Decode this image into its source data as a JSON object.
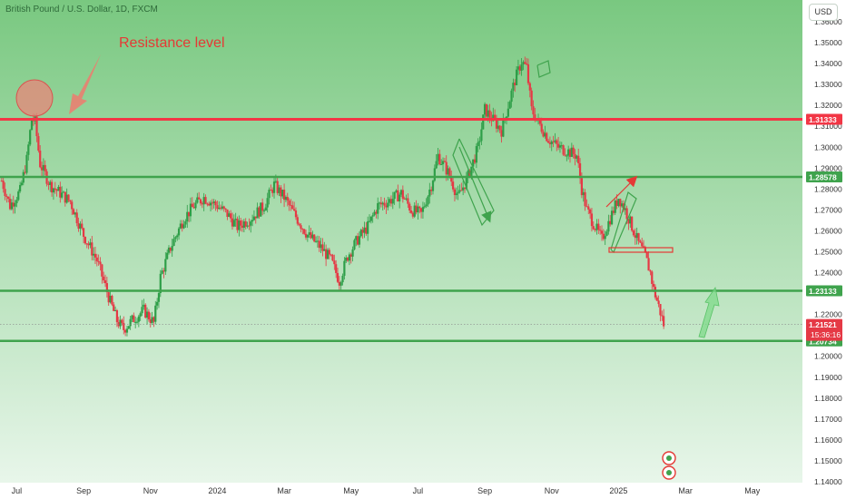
{
  "header": {
    "symbol_title": "British Pound / U.S. Dollar, 1D, FXCM",
    "currency_button": "USD"
  },
  "colors": {
    "bg_top": "#79c880",
    "bg_bottom": "#e8f6ea",
    "resistance_line": "#f23645",
    "support_line": "#3fa34d",
    "candle_up": "#2e9e48",
    "candle_down": "#e53945"
  },
  "chart_data": {
    "type": "candlestick",
    "title": "British Pound / U.S. Dollar, 1D, FXCM",
    "y_axis": {
      "range": [
        1.14,
        1.36
      ],
      "tick_labels": [
        "1.36000",
        "1.35000",
        "1.34000",
        "1.33000",
        "1.32000",
        "1.31000",
        "1.30000",
        "1.29000",
        "1.28000",
        "1.27000",
        "1.26000",
        "1.25000",
        "1.24000",
        "1.23000",
        "1.22000",
        "1.21000",
        "1.20000",
        "1.19000",
        "1.18000",
        "1.17000",
        "1.16000",
        "1.15000",
        "1.14000"
      ],
      "tick_values": [
        1.36,
        1.35,
        1.34,
        1.33,
        1.32,
        1.31,
        1.3,
        1.29,
        1.28,
        1.27,
        1.26,
        1.25,
        1.24,
        1.23,
        1.22,
        1.21,
        1.2,
        1.19,
        1.18,
        1.17,
        1.16,
        1.15,
        1.14
      ]
    },
    "x_axis": {
      "labels": [
        "Jul",
        "Sep",
        "Nov",
        "2024",
        "Mar",
        "May",
        "Jul",
        "Sep",
        "Nov",
        "2025",
        "Mar",
        "May"
      ],
      "label_month_index": [
        0,
        2,
        4,
        6,
        8,
        10,
        12,
        14,
        16,
        18,
        20,
        22
      ],
      "range_month_index": [
        -0.5,
        23.5
      ]
    },
    "price_path": [
      [
        -0.45,
        1.284
      ],
      [
        -0.2,
        1.272
      ],
      [
        0.1,
        1.279
      ],
      [
        0.3,
        1.294
      ],
      [
        0.45,
        1.314
      ],
      [
        0.55,
        1.312
      ],
      [
        0.7,
        1.292
      ],
      [
        1.0,
        1.282
      ],
      [
        1.3,
        1.278
      ],
      [
        1.6,
        1.274
      ],
      [
        2.0,
        1.258
      ],
      [
        2.4,
        1.246
      ],
      [
        2.8,
        1.226
      ],
      [
        3.0,
        1.217
      ],
      [
        3.2,
        1.213
      ],
      [
        3.5,
        1.218
      ],
      [
        3.8,
        1.222
      ],
      [
        4.1,
        1.216
      ],
      [
        4.3,
        1.238
      ],
      [
        4.6,
        1.252
      ],
      [
        5.0,
        1.266
      ],
      [
        5.3,
        1.272
      ],
      [
        5.6,
        1.276
      ],
      [
        6.0,
        1.272
      ],
      [
        6.3,
        1.268
      ],
      [
        6.6,
        1.262
      ],
      [
        7.0,
        1.266
      ],
      [
        7.4,
        1.272
      ],
      [
        7.7,
        1.282
      ],
      [
        8.0,
        1.276
      ],
      [
        8.3,
        1.268
      ],
      [
        8.7,
        1.258
      ],
      [
        9.1,
        1.252
      ],
      [
        9.4,
        1.246
      ],
      [
        9.65,
        1.236
      ],
      [
        9.9,
        1.248
      ],
      [
        10.2,
        1.256
      ],
      [
        10.5,
        1.262
      ],
      [
        10.8,
        1.272
      ],
      [
        11.1,
        1.274
      ],
      [
        11.5,
        1.278
      ],
      [
        11.8,
        1.27
      ],
      [
        12.1,
        1.268
      ],
      [
        12.4,
        1.282
      ],
      [
        12.6,
        1.296
      ],
      [
        12.9,
        1.288
      ],
      [
        13.2,
        1.276
      ],
      [
        13.5,
        1.286
      ],
      [
        13.8,
        1.3
      ],
      [
        14.0,
        1.318
      ],
      [
        14.2,
        1.314
      ],
      [
        14.5,
        1.308
      ],
      [
        14.7,
        1.32
      ],
      [
        14.9,
        1.332
      ],
      [
        15.1,
        1.341
      ],
      [
        15.25,
        1.338
      ],
      [
        15.4,
        1.318
      ],
      [
        15.6,
        1.312
      ],
      [
        15.9,
        1.304
      ],
      [
        16.2,
        1.3
      ],
      [
        16.5,
        1.298
      ],
      [
        16.75,
        1.296
      ],
      [
        16.9,
        1.28
      ],
      [
        17.05,
        1.27
      ],
      [
        17.3,
        1.262
      ],
      [
        17.5,
        1.256
      ],
      [
        17.8,
        1.268
      ],
      [
        18.0,
        1.276
      ],
      [
        18.2,
        1.27
      ],
      [
        18.4,
        1.262
      ],
      [
        18.6,
        1.254
      ],
      [
        18.8,
        1.248
      ],
      [
        18.95,
        1.24
      ],
      [
        19.05,
        1.232
      ],
      [
        19.2,
        1.224
      ],
      [
        19.35,
        1.2152
      ]
    ],
    "last_price": 1.21521,
    "level_labels": [
      {
        "value": 1.31333,
        "text": "1.31333",
        "kind": "resistance"
      },
      {
        "value": 1.28578,
        "text": "1.28578",
        "kind": "support"
      },
      {
        "value": 1.23133,
        "text": "1.23133",
        "kind": "support"
      },
      {
        "value": 1.20734,
        "text": "1.20734",
        "kind": "support"
      }
    ],
    "last_price_label": "1.21521",
    "countdown_label": "15:36:16",
    "annotation": "Resistance level",
    "grid": false,
    "legend": "none"
  }
}
